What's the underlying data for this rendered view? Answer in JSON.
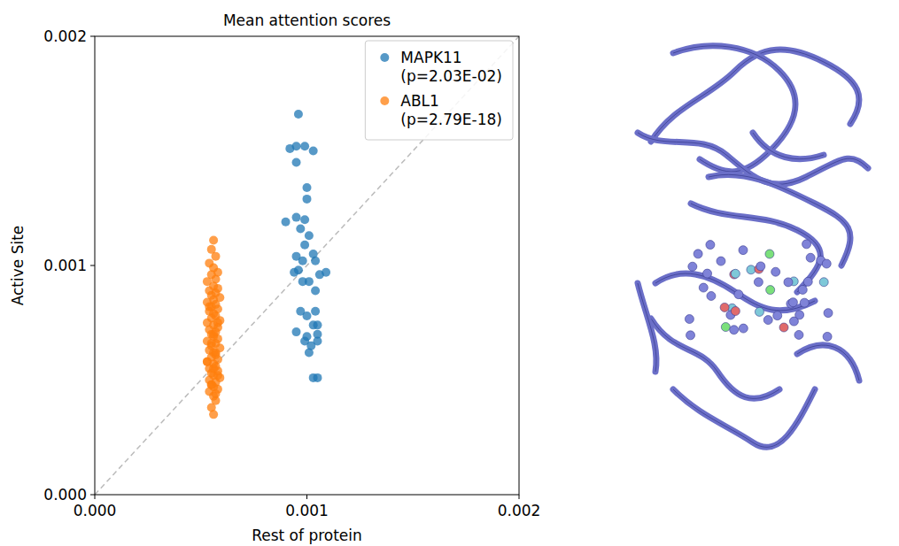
{
  "chart_data": {
    "type": "scatter",
    "title": "Mean attention scores",
    "x_label": "Rest of protein",
    "y_label": "Active Site",
    "xlim": [
      0,
      0.002
    ],
    "ylim": [
      0,
      0.002
    ],
    "xticks": [
      {
        "value": 0,
        "label": "0.000"
      },
      0.001,
      0.002
    ],
    "yticks": [
      {
        "value": 0,
        "label": "0.000"
      },
      0.001,
      0.002
    ],
    "grid": false,
    "legend": "upper right",
    "series": [
      {
        "name": "MAPK11 (p=2.03E-02)",
        "color": "#1f77b4",
        "marker": "circle",
        "x": [
          0.00096,
          0.00092,
          0.00095,
          0.00099,
          0.00103,
          0.00095,
          0.001,
          0.001,
          0.0009,
          0.00095,
          0.00099,
          0.00097,
          0.00101,
          0.00099,
          0.00103,
          0.00095,
          0.00098,
          0.00096,
          0.00104,
          0.00094,
          0.00101,
          0.00106,
          0.00098,
          0.00109,
          0.00104,
          0.00097,
          0.001,
          0.00104,
          0.00103,
          0.00105,
          0.00095,
          0.00105,
          0.001,
          0.00099,
          0.00105,
          0.00102,
          0.00101,
          0.00103,
          0.00105
        ],
        "values": [
          0.00166,
          0.00151,
          0.00152,
          0.00152,
          0.0015,
          0.00145,
          0.00134,
          0.00129,
          0.00119,
          0.00121,
          0.0012,
          0.00116,
          0.00113,
          0.00109,
          0.00105,
          0.00104,
          0.00102,
          0.00098,
          0.00102,
          0.00097,
          0.00093,
          0.00096,
          0.00093,
          0.00097,
          0.00089,
          0.0008,
          0.00078,
          0.0008,
          0.00074,
          0.00074,
          0.00071,
          0.0007,
          0.00069,
          0.00067,
          0.00067,
          0.00065,
          0.00062,
          0.00051,
          0.00051
        ]
      },
      {
        "name": "ABL1 (p=2.79E-18)",
        "color": "#ff7f0e",
        "marker": "circle",
        "x": [
          0.00056,
          0.00055,
          0.00057,
          0.00054,
          0.00056,
          0.00058,
          0.00055,
          0.00057,
          0.00053,
          0.00056,
          0.00058,
          0.00054,
          0.00057,
          0.00055,
          0.00059,
          0.00056,
          0.00053,
          0.00057,
          0.00055,
          0.00058,
          0.00054,
          0.00056,
          0.00057,
          0.00055,
          0.00059,
          0.00053,
          0.00056,
          0.00058,
          0.00054,
          0.00057,
          0.00055,
          0.00056,
          0.00058,
          0.00053,
          0.00057,
          0.00055,
          0.00059,
          0.00054,
          0.00056,
          0.00057,
          0.00055,
          0.00058,
          0.00053,
          0.00056,
          0.00057,
          0.00054,
          0.00058,
          0.00055,
          0.00056,
          0.00059,
          0.00054,
          0.00057,
          0.00055,
          0.00056,
          0.00058,
          0.00054,
          0.00056,
          0.00057,
          0.00055,
          0.00056,
          0.00054,
          0.00058,
          0.00056,
          0.00055,
          0.00057,
          0.00053,
          0.00056,
          0.00058,
          0.00055,
          0.00057
        ],
        "values": [
          0.00111,
          0.00107,
          0.00104,
          0.00101,
          0.00099,
          0.00097,
          0.00096,
          0.00094,
          0.00093,
          0.00091,
          0.0009,
          0.00089,
          0.00088,
          0.00087,
          0.00086,
          0.00085,
          0.00084,
          0.00083,
          0.00082,
          0.00081,
          0.0008,
          0.00079,
          0.00078,
          0.00077,
          0.00076,
          0.00075,
          0.00074,
          0.00073,
          0.00072,
          0.00071,
          0.0007,
          0.00069,
          0.00068,
          0.00067,
          0.00066,
          0.00065,
          0.00064,
          0.00063,
          0.00062,
          0.00061,
          0.0006,
          0.00059,
          0.00058,
          0.00057,
          0.00056,
          0.00055,
          0.00054,
          0.00053,
          0.00052,
          0.00051,
          0.0005,
          0.00049,
          0.00048,
          0.00047,
          0.00046,
          0.00045,
          0.00043,
          0.00041,
          0.00038,
          0.00035,
          0.00082,
          0.00075,
          0.0007,
          0.00066,
          0.00062,
          0.00058,
          0.00055,
          0.00052,
          0.00048,
          0.00044
        ]
      }
    ]
  }
}
